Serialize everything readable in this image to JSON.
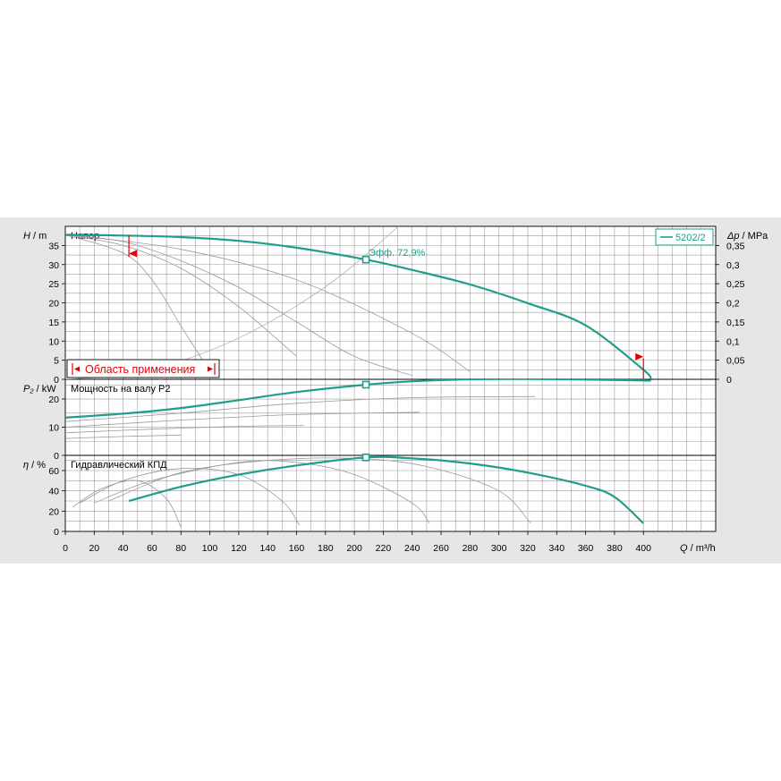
{
  "chart_data": [
    {
      "type": "line",
      "title": "Напор",
      "ylabel_var": "H",
      "ylabel_unit": "m",
      "ylim": [
        0,
        40
      ],
      "yticks": [
        0,
        5,
        10,
        15,
        20,
        25,
        30,
        35
      ],
      "y2label_var": "Δp",
      "y2label_unit": "MPa",
      "y2ticks": [
        "0",
        "0,05",
        "0,1",
        "0,15",
        "0,2",
        "0,25",
        "0,3",
        "0,35"
      ],
      "legend": {
        "label": "5202/2",
        "placement": "top-right"
      },
      "annotation": "Эфф.  72,9%",
      "application_range_label": "Область применения",
      "operating_point": {
        "x": 208,
        "y": 31.3
      },
      "range_limits": {
        "min_x": 44,
        "max_x": 400
      },
      "series": [
        {
          "name": "5202/2",
          "main": true,
          "points": [
            [
              0,
              37.8
            ],
            [
              40,
              37.6
            ],
            [
              80,
              37.2
            ],
            [
              120,
              36.2
            ],
            [
              160,
              34.4
            ],
            [
              208,
              31.3
            ],
            [
              240,
              28.6
            ],
            [
              280,
              24.8
            ],
            [
              320,
              19.9
            ],
            [
              360,
              14.1
            ],
            [
              400,
              2.5
            ],
            [
              405,
              0
            ]
          ]
        },
        {
          "points": [
            [
              0,
              37.8
            ],
            [
              40,
              36
            ],
            [
              80,
              31
            ],
            [
              120,
              24
            ],
            [
              160,
              15
            ],
            [
              200,
              6
            ],
            [
              240,
              1
            ]
          ]
        },
        {
          "points": [
            [
              0,
              37.8
            ],
            [
              40,
              35
            ],
            [
              80,
              29
            ],
            [
              120,
              19
            ],
            [
              160,
              6
            ]
          ]
        },
        {
          "points": [
            [
              0,
              37.8
            ],
            [
              40,
              33
            ],
            [
              60,
              26
            ],
            [
              80,
              14
            ],
            [
              100,
              2
            ]
          ]
        },
        {
          "points": [
            [
              0,
              37.8
            ],
            [
              80,
              34
            ],
            [
              160,
              26
            ],
            [
              240,
              12
            ],
            [
              280,
              2
            ]
          ]
        }
      ],
      "system_curves": [
        {
          "points": [
            [
              0,
              0
            ],
            [
              40,
              1.2
            ],
            [
              80,
              4.8
            ],
            [
              120,
              10.8
            ],
            [
              160,
              19.2
            ],
            [
              200,
              30
            ],
            [
              260,
              50
            ]
          ]
        }
      ]
    },
    {
      "type": "line",
      "title": "Мощность на валу Р2",
      "ylabel_var": "P₂",
      "ylabel_unit": "kW",
      "ylim": [
        0,
        27
      ],
      "yticks": [
        0,
        10,
        20
      ],
      "operating_point": {
        "x": 208,
        "y": 25.1
      },
      "series": [
        {
          "name": "5202/2",
          "main": true,
          "points": [
            [
              0,
              13.4
            ],
            [
              40,
              14.8
            ],
            [
              80,
              16.8
            ],
            [
              120,
              19.6
            ],
            [
              160,
              22.5
            ],
            [
              208,
              25.1
            ],
            [
              240,
              26.3
            ],
            [
              280,
              27.0
            ],
            [
              320,
              27.1
            ],
            [
              360,
              26.9
            ],
            [
              400,
              26.6
            ],
            [
              405,
              26.5
            ]
          ]
        },
        {
          "points": [
            [
              0,
              12
            ],
            [
              80,
              15
            ],
            [
              160,
              18.5
            ],
            [
              240,
              20.5
            ],
            [
              325,
              20.9
            ]
          ]
        },
        {
          "points": [
            [
              0,
              10
            ],
            [
              80,
              12.5
            ],
            [
              160,
              14.5
            ],
            [
              245,
              15.3
            ]
          ]
        },
        {
          "points": [
            [
              0,
              8
            ],
            [
              60,
              9.3
            ],
            [
              120,
              10.3
            ],
            [
              165,
              10.6
            ]
          ]
        },
        {
          "points": [
            [
              0,
              6
            ],
            [
              40,
              6.7
            ],
            [
              80,
              7.2
            ]
          ]
        }
      ]
    },
    {
      "type": "line",
      "title": "Гидравлический КПД",
      "ylabel_var": "η",
      "ylabel_unit": "%",
      "ylim": [
        0,
        75
      ],
      "yticks": [
        0,
        20,
        40,
        60
      ],
      "operating_point": {
        "x": 208,
        "y": 73
      },
      "xlabel_var": "Q",
      "xlabel_unit": "m³/h",
      "xlim": [
        0,
        450
      ],
      "xticks": [
        0,
        20,
        40,
        60,
        80,
        100,
        120,
        140,
        160,
        180,
        200,
        220,
        240,
        260,
        280,
        300,
        320,
        340,
        360,
        380,
        400
      ],
      "series": [
        {
          "name": "5202/2",
          "main": true,
          "points": [
            [
              44,
              30
            ],
            [
              80,
              44
            ],
            [
              120,
              56
            ],
            [
              160,
              65
            ],
            [
              208,
              73
            ],
            [
              240,
              72
            ],
            [
              280,
              67
            ],
            [
              320,
              58
            ],
            [
              360,
              45
            ],
            [
              380,
              34
            ],
            [
              400,
              8
            ]
          ]
        },
        {
          "points": [
            [
              30,
              30
            ],
            [
              80,
              58
            ],
            [
              140,
              70
            ],
            [
              200,
              72
            ],
            [
              250,
              64
            ],
            [
              300,
              40
            ],
            [
              322,
              8
            ]
          ]
        },
        {
          "points": [
            [
              20,
              28
            ],
            [
              60,
              50
            ],
            [
              120,
              68
            ],
            [
              160,
              68
            ],
            [
              200,
              56
            ],
            [
              240,
              28
            ],
            [
              252,
              8
            ]
          ]
        },
        {
          "points": [
            [
              10,
              28
            ],
            [
              40,
              50
            ],
            [
              80,
              62
            ],
            [
              120,
              56
            ],
            [
              150,
              30
            ],
            [
              162,
              6
            ]
          ]
        },
        {
          "points": [
            [
              5,
              24
            ],
            [
              25,
              42
            ],
            [
              50,
              50
            ],
            [
              70,
              32
            ],
            [
              80,
              4
            ]
          ]
        }
      ]
    }
  ]
}
